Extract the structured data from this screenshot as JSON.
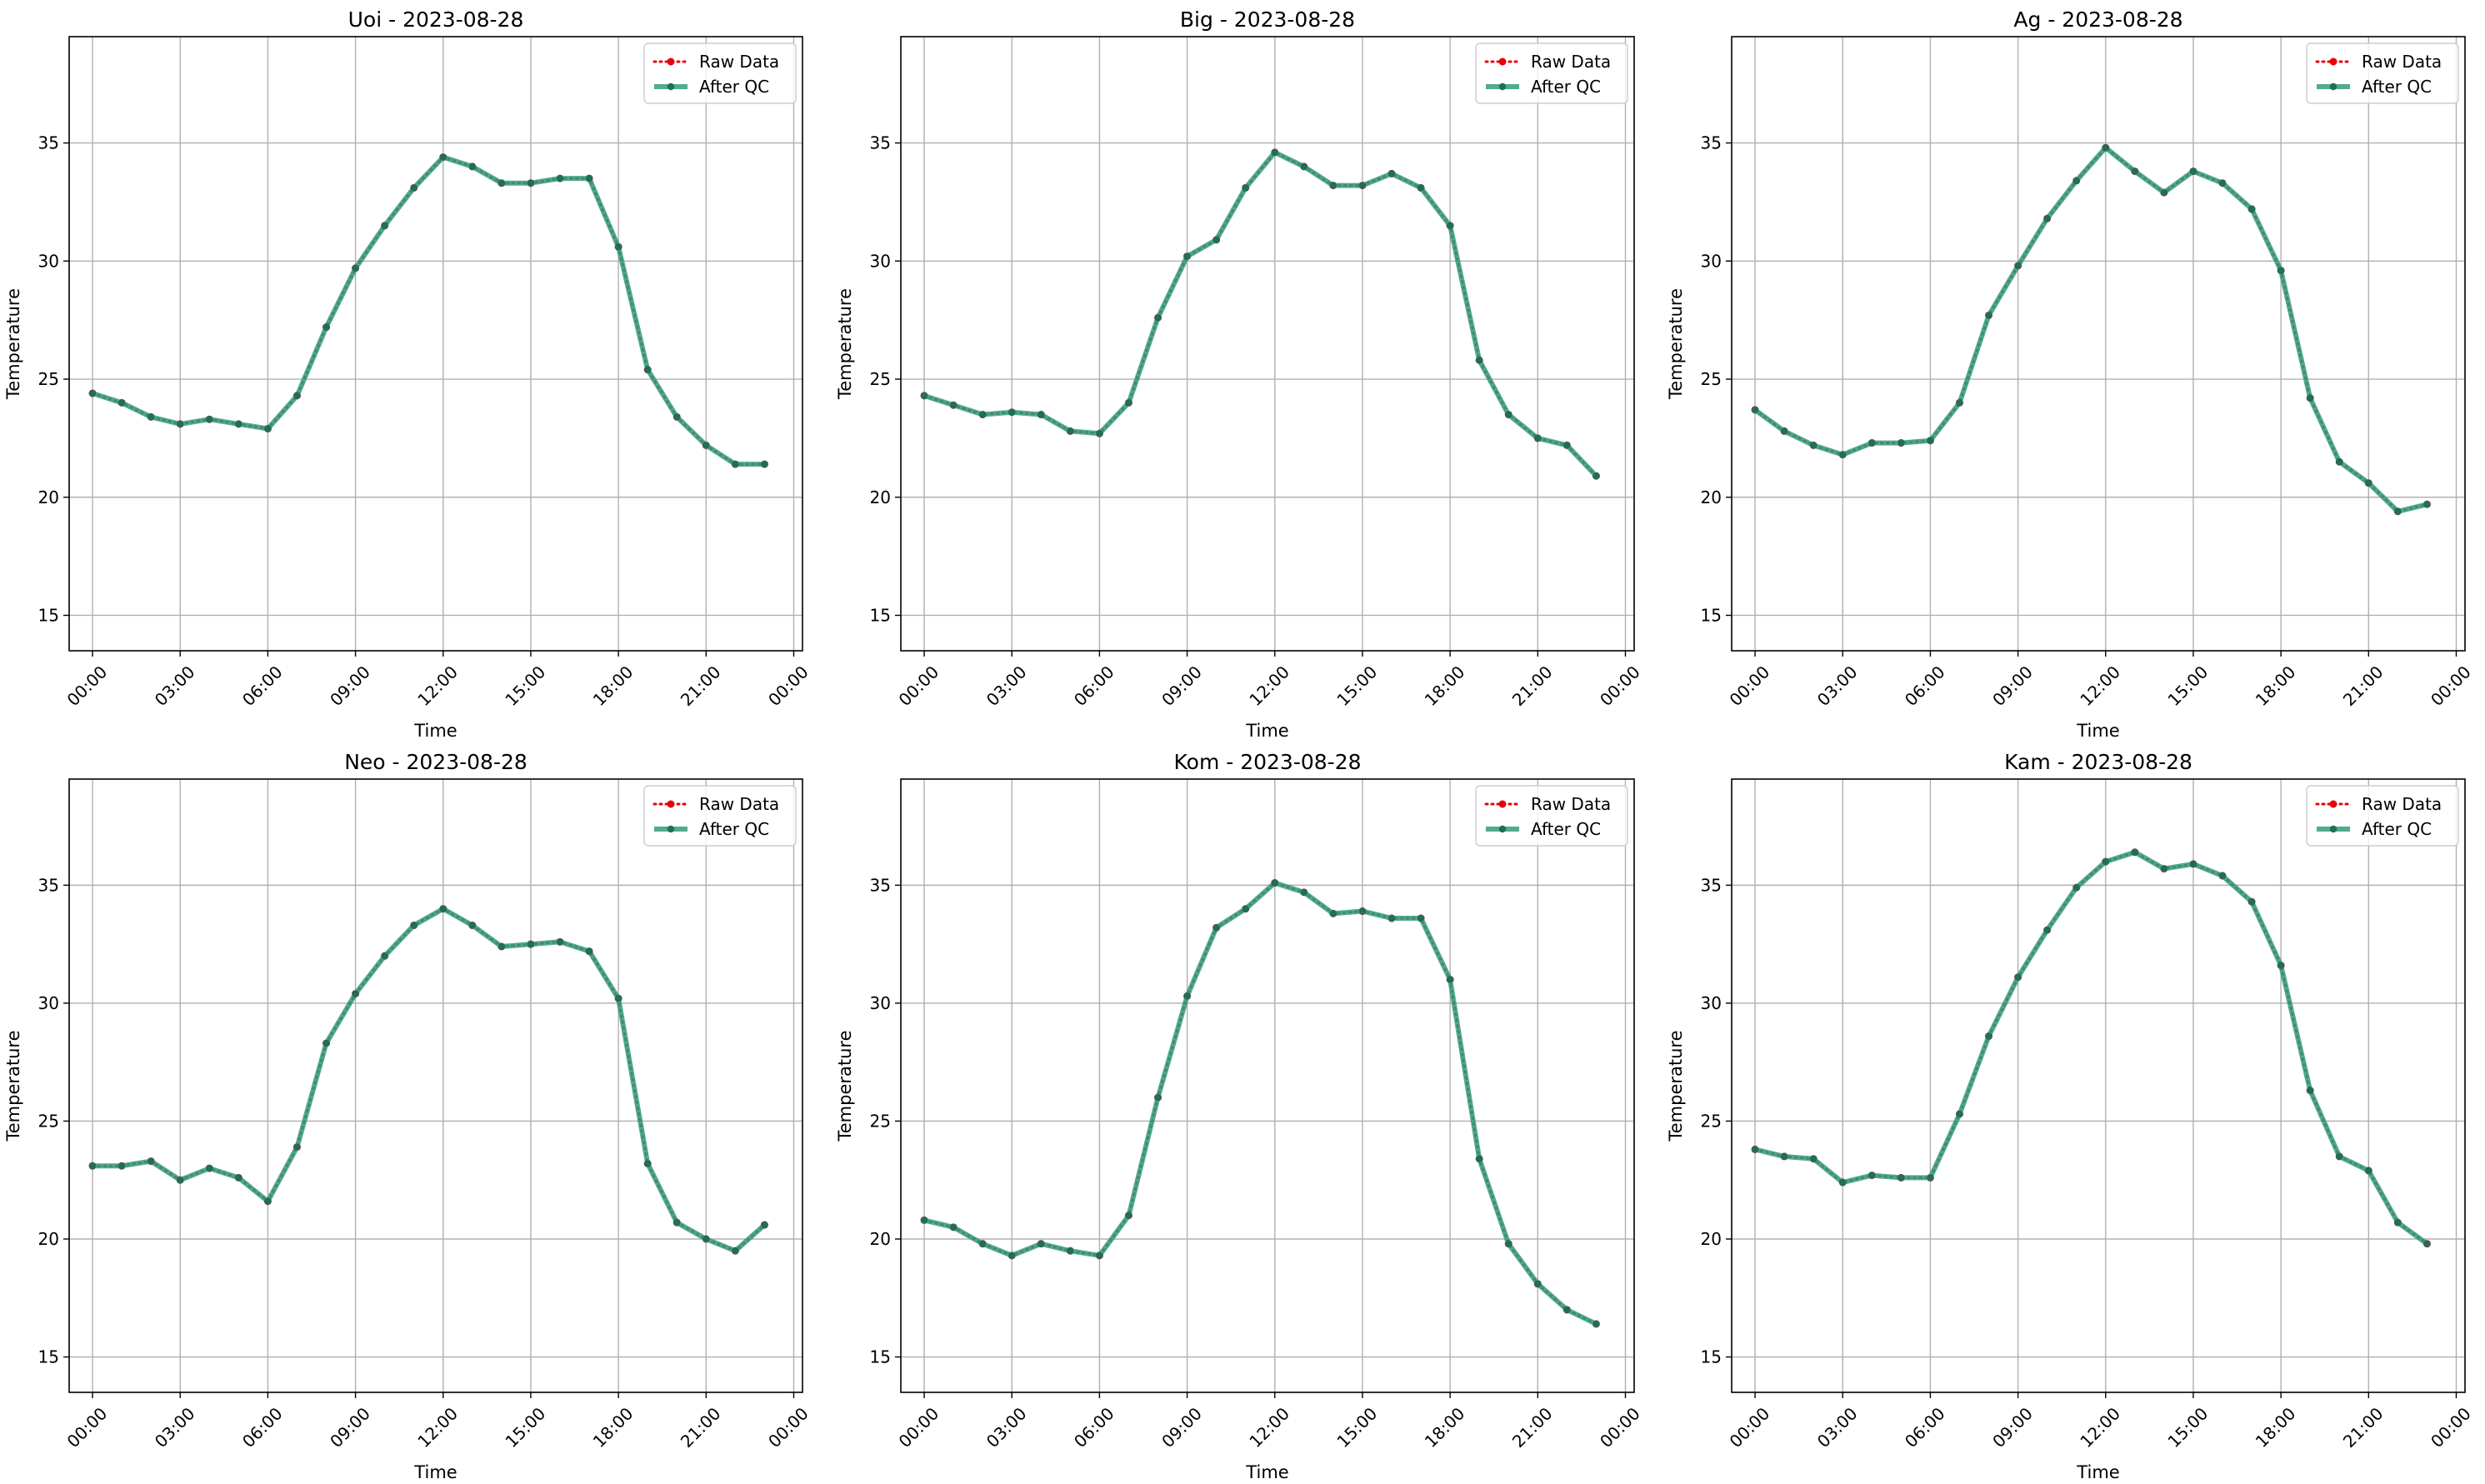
{
  "figure": {
    "legend": {
      "raw_label": "Raw Data",
      "qc_label": "After QC",
      "placement": "upper right"
    },
    "colors": {
      "raw": "#e8000b",
      "qc": "#2f9e7c",
      "qc_marker": "#1f6f57",
      "grid": "#b0b0b0",
      "axes": "#000000"
    }
  },
  "chart_data": [
    {
      "type": "line",
      "title": "Uoi - 2023-08-28",
      "xlabel": "Time",
      "ylabel": "Temperature",
      "x": [
        "00:00",
        "01:00",
        "02:00",
        "03:00",
        "04:00",
        "05:00",
        "06:00",
        "07:00",
        "08:00",
        "09:00",
        "10:00",
        "11:00",
        "12:00",
        "13:00",
        "14:00",
        "15:00",
        "16:00",
        "17:00",
        "18:00",
        "19:00",
        "20:00",
        "21:00",
        "22:00",
        "23:00"
      ],
      "xticks": [
        "00:00",
        "03:00",
        "06:00",
        "09:00",
        "12:00",
        "15:00",
        "18:00",
        "21:00",
        "00:00"
      ],
      "yticks": [
        15,
        20,
        25,
        30,
        35
      ],
      "ylim": [
        13.5,
        39.5
      ],
      "xlim_hours": [
        -0.8,
        24.3
      ],
      "grid": true,
      "series": [
        {
          "name": "Raw Data",
          "values": [
            24.4,
            24.0,
            23.4,
            23.1,
            23.3,
            23.1,
            22.9,
            24.3,
            27.2,
            29.7,
            31.5,
            33.1,
            34.4,
            34.0,
            33.3,
            33.3,
            33.5,
            33.5,
            30.6,
            25.4,
            23.4,
            22.2,
            21.4,
            21.4
          ]
        },
        {
          "name": "After QC",
          "values": [
            24.4,
            24.0,
            23.4,
            23.1,
            23.3,
            23.1,
            22.9,
            24.3,
            27.2,
            29.7,
            31.5,
            33.1,
            34.4,
            34.0,
            33.3,
            33.3,
            33.5,
            33.5,
            30.6,
            25.4,
            23.4,
            22.2,
            21.4,
            21.4
          ]
        }
      ]
    },
    {
      "type": "line",
      "title": "Big - 2023-08-28",
      "xlabel": "Time",
      "ylabel": "Temperature",
      "x": [
        "00:00",
        "01:00",
        "02:00",
        "03:00",
        "04:00",
        "05:00",
        "06:00",
        "07:00",
        "08:00",
        "09:00",
        "10:00",
        "11:00",
        "12:00",
        "13:00",
        "14:00",
        "15:00",
        "16:00",
        "17:00",
        "18:00",
        "19:00",
        "20:00",
        "21:00",
        "22:00",
        "23:00"
      ],
      "xticks": [
        "00:00",
        "03:00",
        "06:00",
        "09:00",
        "12:00",
        "15:00",
        "18:00",
        "21:00",
        "00:00"
      ],
      "yticks": [
        15,
        20,
        25,
        30,
        35
      ],
      "ylim": [
        13.5,
        39.5
      ],
      "xlim_hours": [
        -0.8,
        24.3
      ],
      "grid": true,
      "series": [
        {
          "name": "Raw Data",
          "values": [
            24.3,
            23.9,
            23.5,
            23.6,
            23.5,
            22.8,
            22.7,
            24.0,
            27.6,
            30.2,
            30.9,
            33.1,
            34.6,
            34.0,
            33.2,
            33.2,
            33.7,
            33.1,
            31.5,
            25.8,
            23.5,
            22.5,
            22.2,
            20.9
          ]
        },
        {
          "name": "After QC",
          "values": [
            24.3,
            23.9,
            23.5,
            23.6,
            23.5,
            22.8,
            22.7,
            24.0,
            27.6,
            30.2,
            30.9,
            33.1,
            34.6,
            34.0,
            33.2,
            33.2,
            33.7,
            33.1,
            31.5,
            25.8,
            23.5,
            22.5,
            22.2,
            20.9
          ]
        }
      ]
    },
    {
      "type": "line",
      "title": "Ag - 2023-08-28",
      "xlabel": "Time",
      "ylabel": "Temperature",
      "x": [
        "00:00",
        "01:00",
        "02:00",
        "03:00",
        "04:00",
        "05:00",
        "06:00",
        "07:00",
        "08:00",
        "09:00",
        "10:00",
        "11:00",
        "12:00",
        "13:00",
        "14:00",
        "15:00",
        "16:00",
        "17:00",
        "18:00",
        "19:00",
        "20:00",
        "21:00",
        "22:00",
        "23:00"
      ],
      "xticks": [
        "00:00",
        "03:00",
        "06:00",
        "09:00",
        "12:00",
        "15:00",
        "18:00",
        "21:00",
        "00:00"
      ],
      "yticks": [
        15,
        20,
        25,
        30,
        35
      ],
      "ylim": [
        13.5,
        39.5
      ],
      "xlim_hours": [
        -0.8,
        24.3
      ],
      "grid": true,
      "series": [
        {
          "name": "Raw Data",
          "values": [
            23.7,
            22.8,
            22.2,
            21.8,
            22.3,
            22.3,
            22.4,
            24.0,
            27.7,
            29.8,
            31.8,
            33.4,
            34.8,
            33.8,
            32.9,
            33.8,
            33.3,
            32.2,
            29.6,
            24.2,
            21.5,
            20.6,
            19.4,
            19.7
          ]
        },
        {
          "name": "After QC",
          "values": [
            23.7,
            22.8,
            22.2,
            21.8,
            22.3,
            22.3,
            22.4,
            24.0,
            27.7,
            29.8,
            31.8,
            33.4,
            34.8,
            33.8,
            32.9,
            33.8,
            33.3,
            32.2,
            29.6,
            24.2,
            21.5,
            20.6,
            19.4,
            19.7
          ]
        }
      ]
    },
    {
      "type": "line",
      "title": "Neo - 2023-08-28",
      "xlabel": "Time",
      "ylabel": "Temperature",
      "x": [
        "00:00",
        "01:00",
        "02:00",
        "03:00",
        "04:00",
        "05:00",
        "06:00",
        "07:00",
        "08:00",
        "09:00",
        "10:00",
        "11:00",
        "12:00",
        "13:00",
        "14:00",
        "15:00",
        "16:00",
        "17:00",
        "18:00",
        "19:00",
        "20:00",
        "21:00",
        "22:00",
        "23:00"
      ],
      "xticks": [
        "00:00",
        "03:00",
        "06:00",
        "09:00",
        "12:00",
        "15:00",
        "18:00",
        "21:00",
        "00:00"
      ],
      "yticks": [
        15,
        20,
        25,
        30,
        35
      ],
      "ylim": [
        13.5,
        39.5
      ],
      "xlim_hours": [
        -0.8,
        24.3
      ],
      "grid": true,
      "series": [
        {
          "name": "Raw Data",
          "values": [
            23.1,
            23.1,
            23.3,
            22.5,
            23.0,
            22.6,
            21.6,
            23.9,
            28.3,
            30.4,
            32.0,
            33.3,
            34.0,
            33.3,
            32.4,
            32.5,
            32.6,
            32.2,
            30.2,
            23.2,
            20.7,
            20.0,
            19.5,
            20.6
          ]
        },
        {
          "name": "After QC",
          "values": [
            23.1,
            23.1,
            23.3,
            22.5,
            23.0,
            22.6,
            21.6,
            23.9,
            28.3,
            30.4,
            32.0,
            33.3,
            34.0,
            33.3,
            32.4,
            32.5,
            32.6,
            32.2,
            30.2,
            23.2,
            20.7,
            20.0,
            19.5,
            20.6
          ]
        }
      ]
    },
    {
      "type": "line",
      "title": "Kom - 2023-08-28",
      "xlabel": "Time",
      "ylabel": "Temperature",
      "x": [
        "00:00",
        "01:00",
        "02:00",
        "03:00",
        "04:00",
        "05:00",
        "06:00",
        "07:00",
        "08:00",
        "09:00",
        "10:00",
        "11:00",
        "12:00",
        "13:00",
        "14:00",
        "15:00",
        "16:00",
        "17:00",
        "18:00",
        "19:00",
        "20:00",
        "21:00",
        "22:00",
        "23:00"
      ],
      "xticks": [
        "00:00",
        "03:00",
        "06:00",
        "09:00",
        "12:00",
        "15:00",
        "18:00",
        "21:00",
        "00:00"
      ],
      "yticks": [
        15,
        20,
        25,
        30,
        35
      ],
      "ylim": [
        13.5,
        39.5
      ],
      "xlim_hours": [
        -0.8,
        24.3
      ],
      "grid": true,
      "series": [
        {
          "name": "Raw Data",
          "values": [
            20.8,
            20.5,
            19.8,
            19.3,
            19.8,
            19.5,
            19.3,
            21.0,
            26.0,
            30.3,
            33.2,
            34.0,
            35.1,
            34.7,
            33.8,
            33.9,
            33.6,
            33.6,
            31.0,
            23.4,
            19.8,
            18.1,
            17.0,
            16.4
          ]
        },
        {
          "name": "After QC",
          "values": [
            20.8,
            20.5,
            19.8,
            19.3,
            19.8,
            19.5,
            19.3,
            21.0,
            26.0,
            30.3,
            33.2,
            34.0,
            35.1,
            34.7,
            33.8,
            33.9,
            33.6,
            33.6,
            31.0,
            23.4,
            19.8,
            18.1,
            17.0,
            16.4
          ]
        }
      ]
    },
    {
      "type": "line",
      "title": "Kam - 2023-08-28",
      "xlabel": "Time",
      "ylabel": "Temperature",
      "x": [
        "00:00",
        "01:00",
        "02:00",
        "03:00",
        "04:00",
        "05:00",
        "06:00",
        "07:00",
        "08:00",
        "09:00",
        "10:00",
        "11:00",
        "12:00",
        "13:00",
        "14:00",
        "15:00",
        "16:00",
        "17:00",
        "18:00",
        "19:00",
        "20:00",
        "21:00",
        "22:00",
        "23:00"
      ],
      "xticks": [
        "00:00",
        "03:00",
        "06:00",
        "09:00",
        "12:00",
        "15:00",
        "18:00",
        "21:00",
        "00:00"
      ],
      "yticks": [
        15,
        20,
        25,
        30,
        35
      ],
      "ylim": [
        13.5,
        39.5
      ],
      "xlim_hours": [
        -0.8,
        24.3
      ],
      "grid": true,
      "series": [
        {
          "name": "Raw Data",
          "values": [
            23.8,
            23.5,
            23.4,
            22.4,
            22.7,
            22.6,
            22.6,
            25.3,
            28.6,
            31.1,
            33.1,
            34.9,
            36.0,
            36.4,
            35.7,
            35.9,
            35.4,
            34.3,
            31.6,
            26.3,
            23.5,
            22.9,
            20.7,
            19.8
          ]
        },
        {
          "name": "After QC",
          "values": [
            23.8,
            23.5,
            23.4,
            22.4,
            22.7,
            22.6,
            22.6,
            25.3,
            28.6,
            31.1,
            33.1,
            34.9,
            36.0,
            36.4,
            35.7,
            35.9,
            35.4,
            34.3,
            31.6,
            26.3,
            23.5,
            22.9,
            20.7,
            19.8
          ]
        }
      ]
    }
  ]
}
